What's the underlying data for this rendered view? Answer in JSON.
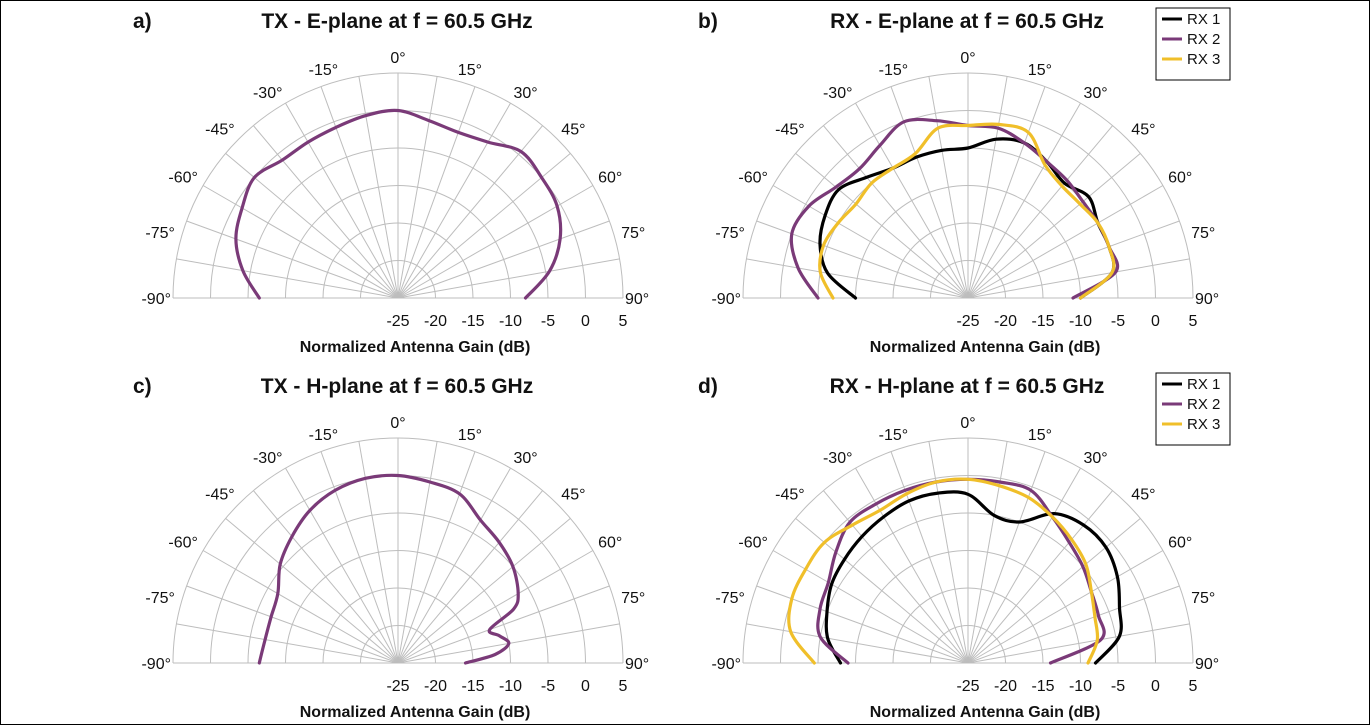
{
  "colors": {
    "RX 1": "#000000",
    "RX 2": "#7a3a78",
    "RX 3": "#f0bf2a",
    "TX": "#7a3a78",
    "grid": "#bdbdbd"
  },
  "chart_data": [
    {
      "type": "polar",
      "letter": "a)",
      "title": "TX - E-plane at f = 60.5 GHz",
      "xlabel": "Normalized Antenna Gain (dB)",
      "angle_labels": [
        "-90°",
        "-75°",
        "-60°",
        "-45°",
        "-30°",
        "-15°",
        "0°",
        "15°",
        "30°",
        "45°",
        "60°",
        "75°",
        "90°"
      ],
      "r_tick_labels": [
        "-25",
        "-20",
        "-15",
        "-10",
        "-5",
        "0",
        "5"
      ],
      "r_range": [
        -25,
        5
      ],
      "theta_range": [
        -90,
        90
      ],
      "legend": [],
      "series": [
        {
          "key": "TX",
          "theta": [
            -90,
            -80,
            -70,
            -60,
            -50,
            -40,
            -30,
            -20,
            -10,
            0,
            10,
            20,
            30,
            40,
            50,
            60,
            70,
            80,
            90
          ],
          "r": [
            -6.5,
            -4.0,
            -2.0,
            -1.0,
            0.0,
            -1.0,
            -1.0,
            -0.8,
            -0.3,
            0.0,
            -1.0,
            -1.5,
            -1.0,
            0.5,
            0.0,
            -0.5,
            -2.0,
            -4.5,
            -8.0
          ]
        }
      ]
    },
    {
      "type": "polar",
      "letter": "b)",
      "title": "RX - E-plane at f = 60.5 GHz",
      "xlabel": "Normalized Antenna Gain (dB)",
      "angle_labels": [
        "-90°",
        "-75°",
        "-60°",
        "-45°",
        "-30°",
        "-15°",
        "0°",
        "15°",
        "30°",
        "45°",
        "60°",
        "75°",
        "90°"
      ],
      "r_tick_labels": [
        "-25",
        "-20",
        "-15",
        "-10",
        "-5",
        "0",
        "5"
      ],
      "r_range": [
        -25,
        5
      ],
      "theta_range": [
        -90,
        90
      ],
      "legend": [
        "RX 1",
        "RX 2",
        "RX 3"
      ],
      "series": [
        {
          "key": "RX 1",
          "name": "RX 1",
          "theta": [
            -90,
            -80,
            -70,
            -60,
            -50,
            -40,
            -30,
            -20,
            -10,
            0,
            10,
            20,
            30,
            40,
            50,
            60,
            70,
            80,
            90
          ],
          "r": [
            -10.0,
            -6.0,
            -4.0,
            -3.0,
            -2.5,
            -4.0,
            -5.0,
            -5.0,
            -5.0,
            -5.0,
            -3.5,
            -3.0,
            -4.0,
            -5.0,
            -4.0,
            -5.0,
            -5.0,
            -5.5,
            -10.0
          ]
        },
        {
          "key": "RX 2",
          "name": "RX 2",
          "theta": [
            -90,
            -80,
            -70,
            -60,
            -50,
            -40,
            -30,
            -20,
            -10,
            0,
            10,
            20,
            30,
            40,
            50,
            60,
            70,
            80,
            90
          ],
          "r": [
            -5.0,
            -2.0,
            0.0,
            -0.5,
            -2.0,
            -2.5,
            -1.5,
            0.0,
            -1.0,
            -2.0,
            -2.0,
            -3.0,
            -4.0,
            -4.5,
            -5.0,
            -5.0,
            -5.0,
            -5.0,
            -11.0
          ]
        },
        {
          "key": "RX 3",
          "name": "RX 3",
          "theta": [
            -90,
            -80,
            -70,
            -60,
            -50,
            -40,
            -30,
            -20,
            -10,
            0,
            10,
            20,
            30,
            40,
            50,
            60,
            70,
            80,
            90
          ],
          "r": [
            -7.0,
            -5.0,
            -4.5,
            -5.0,
            -5.5,
            -5.0,
            -5.0,
            -4.5,
            -2.0,
            -2.0,
            -1.5,
            -1.5,
            -4.5,
            -5.5,
            -5.5,
            -5.0,
            -5.0,
            -5.5,
            -10.0
          ]
        }
      ]
    },
    {
      "type": "polar",
      "letter": "c)",
      "title": "TX - H-plane at f = 60.5 GHz",
      "xlabel": "Normalized Antenna Gain (dB)",
      "angle_labels": [
        "-90°",
        "-75°",
        "-60°",
        "-45°",
        "-30°",
        "-15°",
        "0°",
        "15°",
        "30°",
        "45°",
        "60°",
        "75°",
        "90°"
      ],
      "r_tick_labels": [
        "-25",
        "-20",
        "-15",
        "-10",
        "-5",
        "0",
        "5"
      ],
      "r_range": [
        -25,
        5
      ],
      "theta_range": [
        -90,
        90
      ],
      "legend": [],
      "series": [
        {
          "key": "TX",
          "theta": [
            -90,
            -80,
            -70,
            -60,
            -50,
            -40,
            -30,
            -20,
            -10,
            0,
            10,
            20,
            30,
            40,
            50,
            60,
            65,
            70,
            75,
            80,
            85,
            90
          ],
          "r": [
            -6.5,
            -7.0,
            -7.0,
            -6.5,
            -4.5,
            -3.0,
            -1.5,
            -0.5,
            0.0,
            0.0,
            -0.5,
            -1.0,
            -3.0,
            -4.0,
            -5.0,
            -6.5,
            -8.0,
            -12.0,
            -11.0,
            -10.0,
            -12.0,
            -16.0
          ]
        }
      ]
    },
    {
      "type": "polar",
      "letter": "d)",
      "title": "RX - H-plane at f = 60.5 GHz",
      "xlabel": "Normalized Antenna Gain (dB)",
      "angle_labels": [
        "-90°",
        "-75°",
        "-60°",
        "-45°",
        "-30°",
        "-15°",
        "0°",
        "15°",
        "30°",
        "45°",
        "60°",
        "75°",
        "90°"
      ],
      "r_tick_labels": [
        "-25",
        "-20",
        "-15",
        "-10",
        "-5",
        "0",
        "5"
      ],
      "r_range": [
        -25,
        5
      ],
      "theta_range": [
        -90,
        90
      ],
      "legend": [
        "RX 1",
        "RX 2",
        "RX 3"
      ],
      "series": [
        {
          "key": "RX 1",
          "name": "RX 1",
          "theta": [
            -90,
            -80,
            -70,
            -60,
            -50,
            -40,
            -30,
            -20,
            -10,
            0,
            10,
            20,
            30,
            40,
            50,
            60,
            70,
            80,
            90
          ],
          "r": [
            -8.0,
            -6.0,
            -5.0,
            -4.0,
            -3.5,
            -3.0,
            -2.5,
            -2.0,
            -2.0,
            -2.5,
            -5.0,
            -5.0,
            -2.0,
            -1.0,
            -1.0,
            -2.0,
            -3.5,
            -4.5,
            -8.0
          ]
        },
        {
          "key": "RX 2",
          "name": "RX 2",
          "theta": [
            -90,
            -80,
            -70,
            -60,
            -50,
            -40,
            -30,
            -20,
            -10,
            0,
            10,
            20,
            30,
            40,
            50,
            60,
            70,
            80,
            90
          ],
          "r": [
            -9.0,
            -5.0,
            -4.0,
            -3.5,
            -2.0,
            -0.5,
            -0.5,
            -0.5,
            -0.5,
            -0.5,
            -0.5,
            -0.5,
            -2.5,
            -4.0,
            -5.0,
            -6.0,
            -6.5,
            -7.0,
            -14.0
          ]
        },
        {
          "key": "RX 3",
          "name": "RX 3",
          "theta": [
            -90,
            -80,
            -70,
            -60,
            -50,
            -40,
            -30,
            -20,
            -10,
            0,
            10,
            20,
            30,
            40,
            50,
            60,
            70,
            80,
            90
          ],
          "r": [
            -4.5,
            -1.0,
            0.0,
            0.0,
            0.0,
            -1.0,
            -1.5,
            -1.0,
            -0.5,
            -0.5,
            -1.0,
            -1.5,
            -2.5,
            -3.5,
            -4.5,
            -6.0,
            -7.0,
            -7.5,
            -9.0
          ]
        }
      ]
    }
  ]
}
